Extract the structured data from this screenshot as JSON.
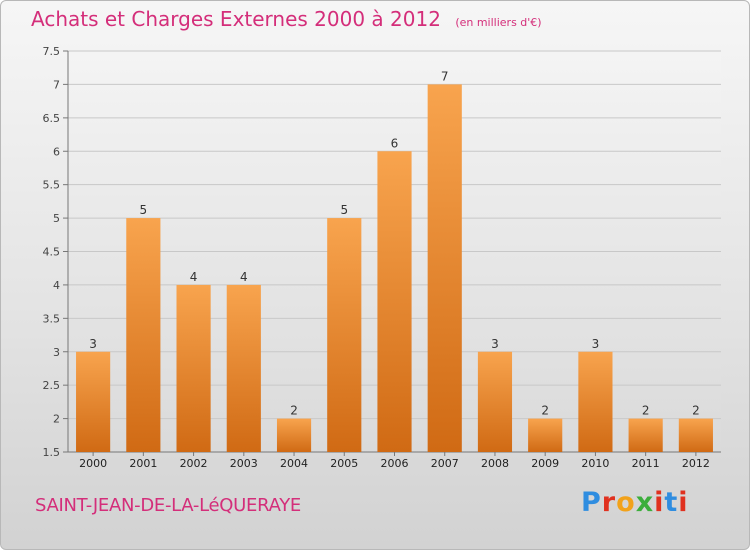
{
  "chart_data": {
    "type": "bar",
    "title": "Achats et Charges Externes 2000 à 2012",
    "subtitle": "(en milliers d'€)",
    "categories": [
      "2000",
      "2001",
      "2002",
      "2003",
      "2004",
      "2005",
      "2006",
      "2007",
      "2008",
      "2009",
      "2010",
      "2011",
      "2012"
    ],
    "values": [
      3,
      5,
      4,
      4,
      2,
      5,
      6,
      7,
      3,
      2,
      3,
      2,
      2
    ],
    "value_labels": [
      "3",
      "5",
      "4",
      "4",
      "2",
      "5",
      "6",
      "7",
      "3",
      "2",
      "3",
      "2",
      "2"
    ],
    "ylim": [
      1.5,
      7.5
    ],
    "yticks": [
      1.5,
      2,
      2.5,
      3,
      3.5,
      4,
      4.5,
      5,
      5.5,
      6,
      6.5,
      7,
      7.5
    ],
    "ytick_labels": [
      "1.5",
      "2",
      "2.5",
      "3",
      "3.5",
      "4",
      "4.5",
      "5",
      "5.5",
      "6",
      "6.5",
      "7",
      "7.5"
    ],
    "grid": true,
    "bar_color_top": "#f8a44e",
    "bar_color_bottom": "#d06a14"
  },
  "commune": "SAINT-JEAN-DE-LA-LéQUERAYE",
  "logo": {
    "letters": [
      "P",
      "r",
      "o",
      "x",
      "i",
      "t",
      "i"
    ],
    "colors": [
      "#2f8de0",
      "#e0311f",
      "#f2a21a",
      "#3cae3c",
      "#e0311f",
      "#2f8de0",
      "#e0311f"
    ]
  }
}
